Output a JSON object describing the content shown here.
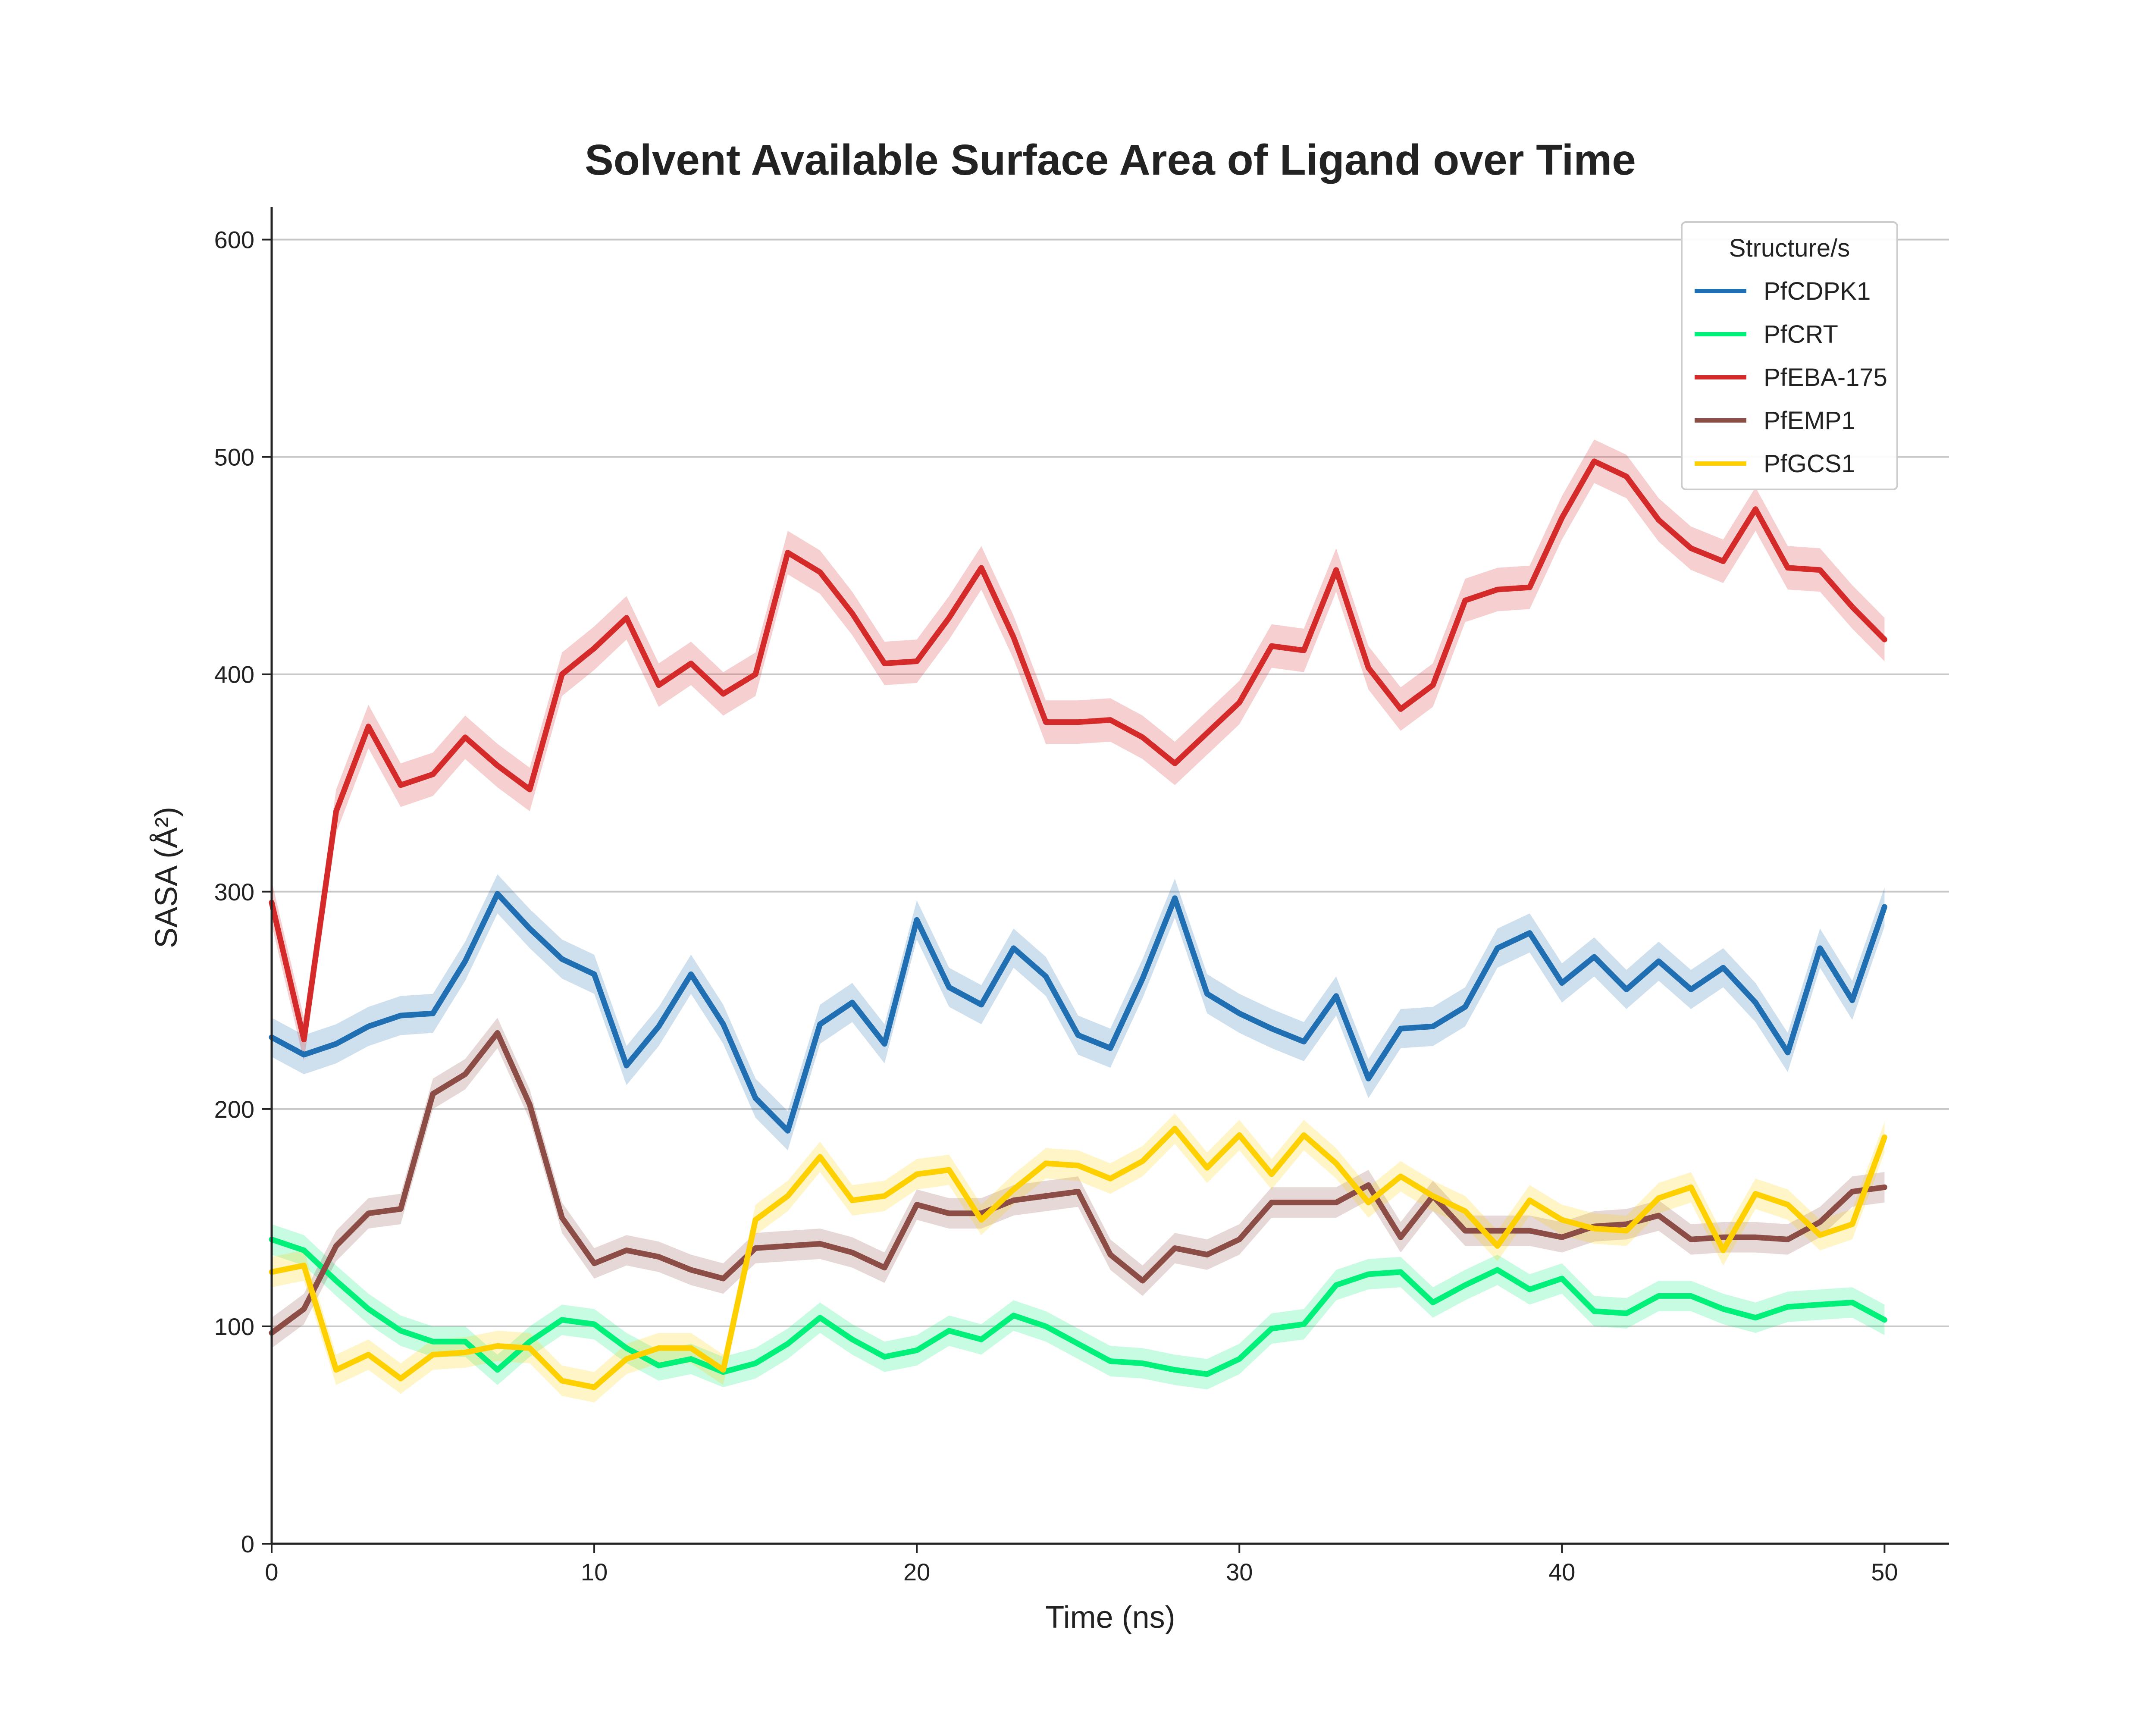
{
  "chart_data": {
    "type": "line",
    "title": "Solvent Available Surface Area of Ligand over Time",
    "xlabel": "Time (ns)",
    "ylabel": "SASA (Å²)",
    "xlim": [
      0,
      52
    ],
    "ylim": [
      0,
      615
    ],
    "xticks": [
      "0",
      "10",
      "20",
      "30",
      "40",
      "50"
    ],
    "yticks": [
      "0",
      "100",
      "200",
      "300",
      "400",
      "500",
      "600"
    ],
    "grid": "horizontal",
    "legend_title": "Structure/s",
    "legend_position": "top-right",
    "x": [
      0,
      1,
      2,
      3,
      4,
      5,
      6,
      7,
      8,
      9,
      10,
      11,
      12,
      13,
      14,
      15,
      16,
      17,
      18,
      19,
      20,
      21,
      22,
      23,
      24,
      25,
      26,
      27,
      28,
      29,
      30,
      31,
      32,
      33,
      34,
      35,
      36,
      37,
      38,
      39,
      40,
      41,
      42,
      43,
      44,
      45,
      46,
      47,
      48,
      49,
      50
    ],
    "series": [
      {
        "name": "PfCDPK1",
        "color": "#1f6fb2",
        "band": 9,
        "values": [
          233,
          225,
          230,
          238,
          243,
          244,
          268,
          299,
          283,
          269,
          262,
          220,
          238,
          262,
          239,
          205,
          190,
          239,
          249,
          230,
          287,
          256,
          248,
          274,
          261,
          234,
          228,
          260,
          297,
          253,
          244,
          237,
          231,
          252,
          214,
          237,
          238,
          247,
          274,
          281,
          258,
          270,
          255,
          268,
          255,
          265,
          249,
          226,
          274,
          250,
          293
        ]
      },
      {
        "name": "PfCRT",
        "color": "#00f07a",
        "band": 7,
        "values": [
          140,
          135,
          121,
          108,
          98,
          93,
          93,
          80,
          93,
          103,
          101,
          90,
          82,
          85,
          79,
          83,
          92,
          104,
          94,
          86,
          89,
          98,
          94,
          105,
          100,
          92,
          84,
          83,
          80,
          78,
          85,
          99,
          101,
          119,
          124,
          125,
          111,
          119,
          126,
          117,
          122,
          107,
          106,
          114,
          114,
          108,
          104,
          109,
          110,
          111,
          103
        ]
      },
      {
        "name": "PfEBA-175",
        "color": "#d42a2a",
        "band": 10,
        "values": [
          295,
          232,
          337,
          376,
          349,
          354,
          371,
          358,
          347,
          400,
          412,
          426,
          395,
          405,
          391,
          400,
          456,
          447,
          428,
          405,
          406,
          426,
          449,
          417,
          378,
          378,
          379,
          371,
          359,
          373,
          387,
          413,
          411,
          448,
          403,
          384,
          395,
          434,
          439,
          440,
          472,
          498,
          491,
          471,
          458,
          452,
          476,
          449,
          448,
          431,
          416
        ]
      },
      {
        "name": "PfEMP1",
        "color": "#8b4d45",
        "band": 7,
        "values": [
          97,
          108,
          137,
          152,
          154,
          207,
          216,
          235,
          202,
          150,
          129,
          135,
          132,
          126,
          122,
          136,
          137,
          138,
          134,
          127,
          156,
          152,
          152,
          158,
          160,
          162,
          133,
          121,
          136,
          133,
          140,
          157,
          157,
          157,
          165,
          141,
          160,
          144,
          144,
          144,
          141,
          146,
          147,
          151,
          140,
          141,
          141,
          140,
          148,
          162,
          164
        ]
      },
      {
        "name": "PfGCS1",
        "color": "#ffd000",
        "band": 7,
        "values": [
          125,
          128,
          80,
          87,
          76,
          87,
          88,
          91,
          90,
          75,
          72,
          85,
          90,
          90,
          80,
          149,
          160,
          178,
          158,
          160,
          170,
          172,
          149,
          163,
          175,
          174,
          168,
          176,
          191,
          173,
          188,
          170,
          188,
          175,
          157,
          169,
          160,
          153,
          137,
          158,
          149,
          145,
          144,
          159,
          164,
          135,
          161,
          156,
          142,
          147,
          187
        ]
      }
    ]
  }
}
